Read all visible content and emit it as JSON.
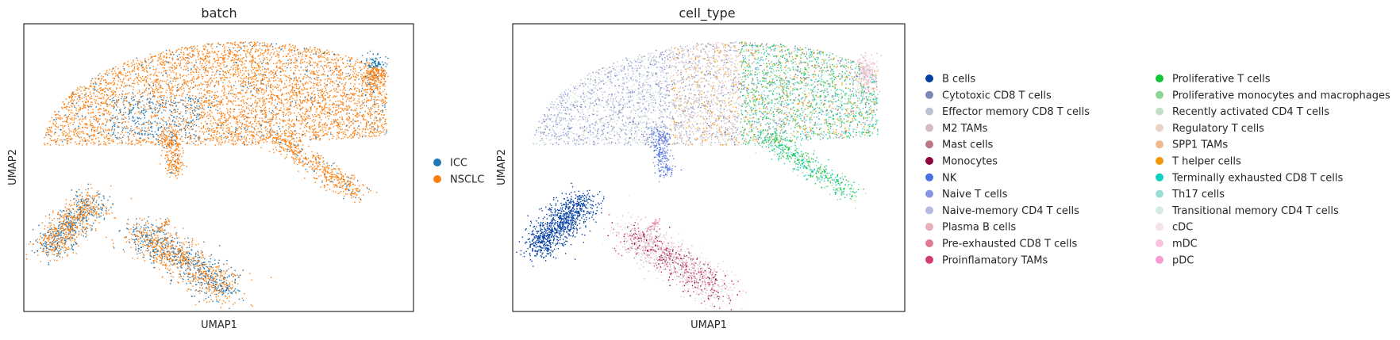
{
  "chart_data": [
    {
      "type": "scatter",
      "title": "batch",
      "xlabel": "UMAP1",
      "ylabel": "UMAP2",
      "grid": false,
      "legend_placement": "right",
      "series": [
        {
          "name": "ICC",
          "color": "#1f77b4"
        },
        {
          "name": "NSCLC",
          "color": "#ff7f0e"
        }
      ]
    },
    {
      "type": "scatter",
      "title": "cell_type",
      "xlabel": "UMAP1",
      "ylabel": "UMAP2",
      "grid": false,
      "legend_placement": "right",
      "series": [
        {
          "name": "B cells",
          "color": "#023fa5"
        },
        {
          "name": "Cytotoxic CD8 T cells",
          "color": "#7d87b9"
        },
        {
          "name": "Effector memory CD8 T cells",
          "color": "#bec1d4"
        },
        {
          "name": "M2 TAMs",
          "color": "#d6bcc0"
        },
        {
          "name": "Mast cells",
          "color": "#bb7784"
        },
        {
          "name": "Monocytes",
          "color": "#8e063b"
        },
        {
          "name": "NK",
          "color": "#4a6fe3"
        },
        {
          "name": "Naive T cells",
          "color": "#8595e1"
        },
        {
          "name": "Naive-memory CD4 T cells",
          "color": "#b5bbe3"
        },
        {
          "name": "Plasma B cells",
          "color": "#e6afb9"
        },
        {
          "name": "Pre-exhausted CD8 T cells",
          "color": "#e07b91"
        },
        {
          "name": "Proinflamatory TAMs",
          "color": "#d33f6a"
        },
        {
          "name": "Proliferative T cells",
          "color": "#11c638"
        },
        {
          "name": "Proliferative monocytes and macrophages",
          "color": "#8dd593"
        },
        {
          "name": "Recently activated CD4 T cells",
          "color": "#c6dec7"
        },
        {
          "name": "Regulatory T cells",
          "color": "#ead3c6"
        },
        {
          "name": "SPP1 TAMs",
          "color": "#f0b98d"
        },
        {
          "name": "T helper cells",
          "color": "#ef9708"
        },
        {
          "name": "Terminally exhausted CD8 T cells",
          "color": "#0fcfc0"
        },
        {
          "name": "Th17 cells",
          "color": "#9cded6"
        },
        {
          "name": "Transitional memory CD4 T cells",
          "color": "#d5eae7"
        },
        {
          "name": "cDC",
          "color": "#f3e1eb"
        },
        {
          "name": "mDC",
          "color": "#f6c4e1"
        },
        {
          "name": "pDC",
          "color": "#f79cd4"
        }
      ]
    }
  ]
}
